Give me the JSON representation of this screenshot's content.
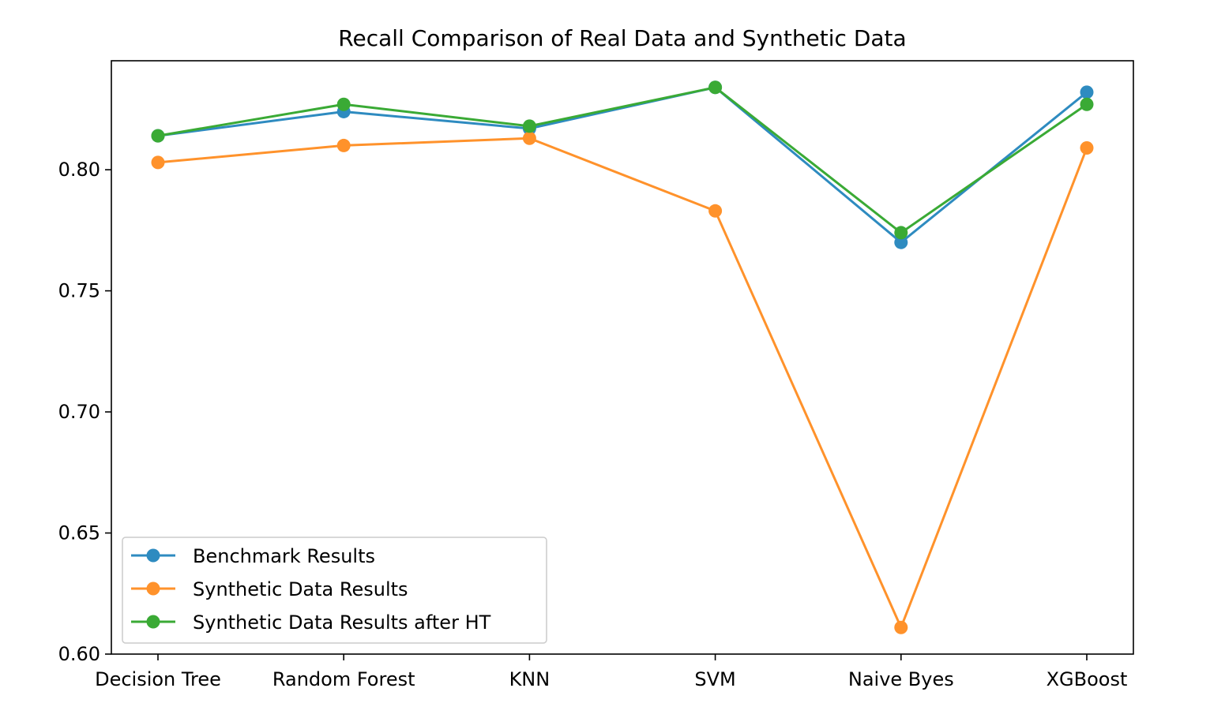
{
  "chart_data": {
    "type": "line",
    "title": "Recall Comparison of Real Data and Synthetic Data",
    "xlabel": "",
    "ylabel": "",
    "categories": [
      "Decision Tree",
      "Random Forest",
      "KNN",
      "SVM",
      "Naive Byes",
      "XGBoost"
    ],
    "ylim": [
      0.6,
      0.845
    ],
    "yticks": [
      0.6,
      0.65,
      0.7,
      0.75,
      0.8
    ],
    "ytick_labels": [
      "0.60",
      "0.65",
      "0.70",
      "0.75",
      "0.80"
    ],
    "grid": false,
    "legend_position": "lower-left",
    "series": [
      {
        "name": "Benchmark Results",
        "color": "#2e8bc0",
        "values": [
          0.814,
          0.824,
          0.817,
          0.834,
          0.77,
          0.832
        ]
      },
      {
        "name": "Synthetic Data Results",
        "color": "#ff922b",
        "values": [
          0.803,
          0.81,
          0.813,
          0.783,
          0.611,
          0.809
        ]
      },
      {
        "name": "Synthetic Data Results after HT",
        "color": "#3aaa35",
        "values": [
          0.814,
          0.827,
          0.818,
          0.834,
          0.774,
          0.827
        ]
      }
    ]
  }
}
